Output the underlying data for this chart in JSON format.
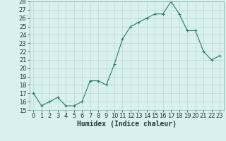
{
  "x": [
    0,
    1,
    2,
    3,
    4,
    5,
    6,
    7,
    8,
    9,
    10,
    11,
    12,
    13,
    14,
    15,
    16,
    17,
    18,
    19,
    20,
    21,
    22,
    23
  ],
  "y": [
    17,
    15.5,
    16,
    16.5,
    15.5,
    15.5,
    16,
    18.5,
    18.5,
    18,
    20.5,
    23.5,
    25,
    25.5,
    26,
    26.5,
    26.5,
    28,
    26.5,
    24.5,
    24.5,
    22,
    21,
    21.5
  ],
  "line_color": "#2d7a6a",
  "marker": "+",
  "marker_size": 3,
  "background_color": "#d8f0ee",
  "grid_color": "#b8d8d4",
  "xlabel": "Humidex (Indice chaleur)",
  "ylim": [
    15,
    28
  ],
  "xlim": [
    -0.5,
    23.5
  ],
  "yticks": [
    15,
    16,
    17,
    18,
    19,
    20,
    21,
    22,
    23,
    24,
    25,
    26,
    27,
    28
  ],
  "xticks": [
    0,
    1,
    2,
    3,
    4,
    5,
    6,
    7,
    8,
    9,
    10,
    11,
    12,
    13,
    14,
    15,
    16,
    17,
    18,
    19,
    20,
    21,
    22,
    23
  ],
  "tick_fontsize": 6,
  "xlabel_fontsize": 7
}
